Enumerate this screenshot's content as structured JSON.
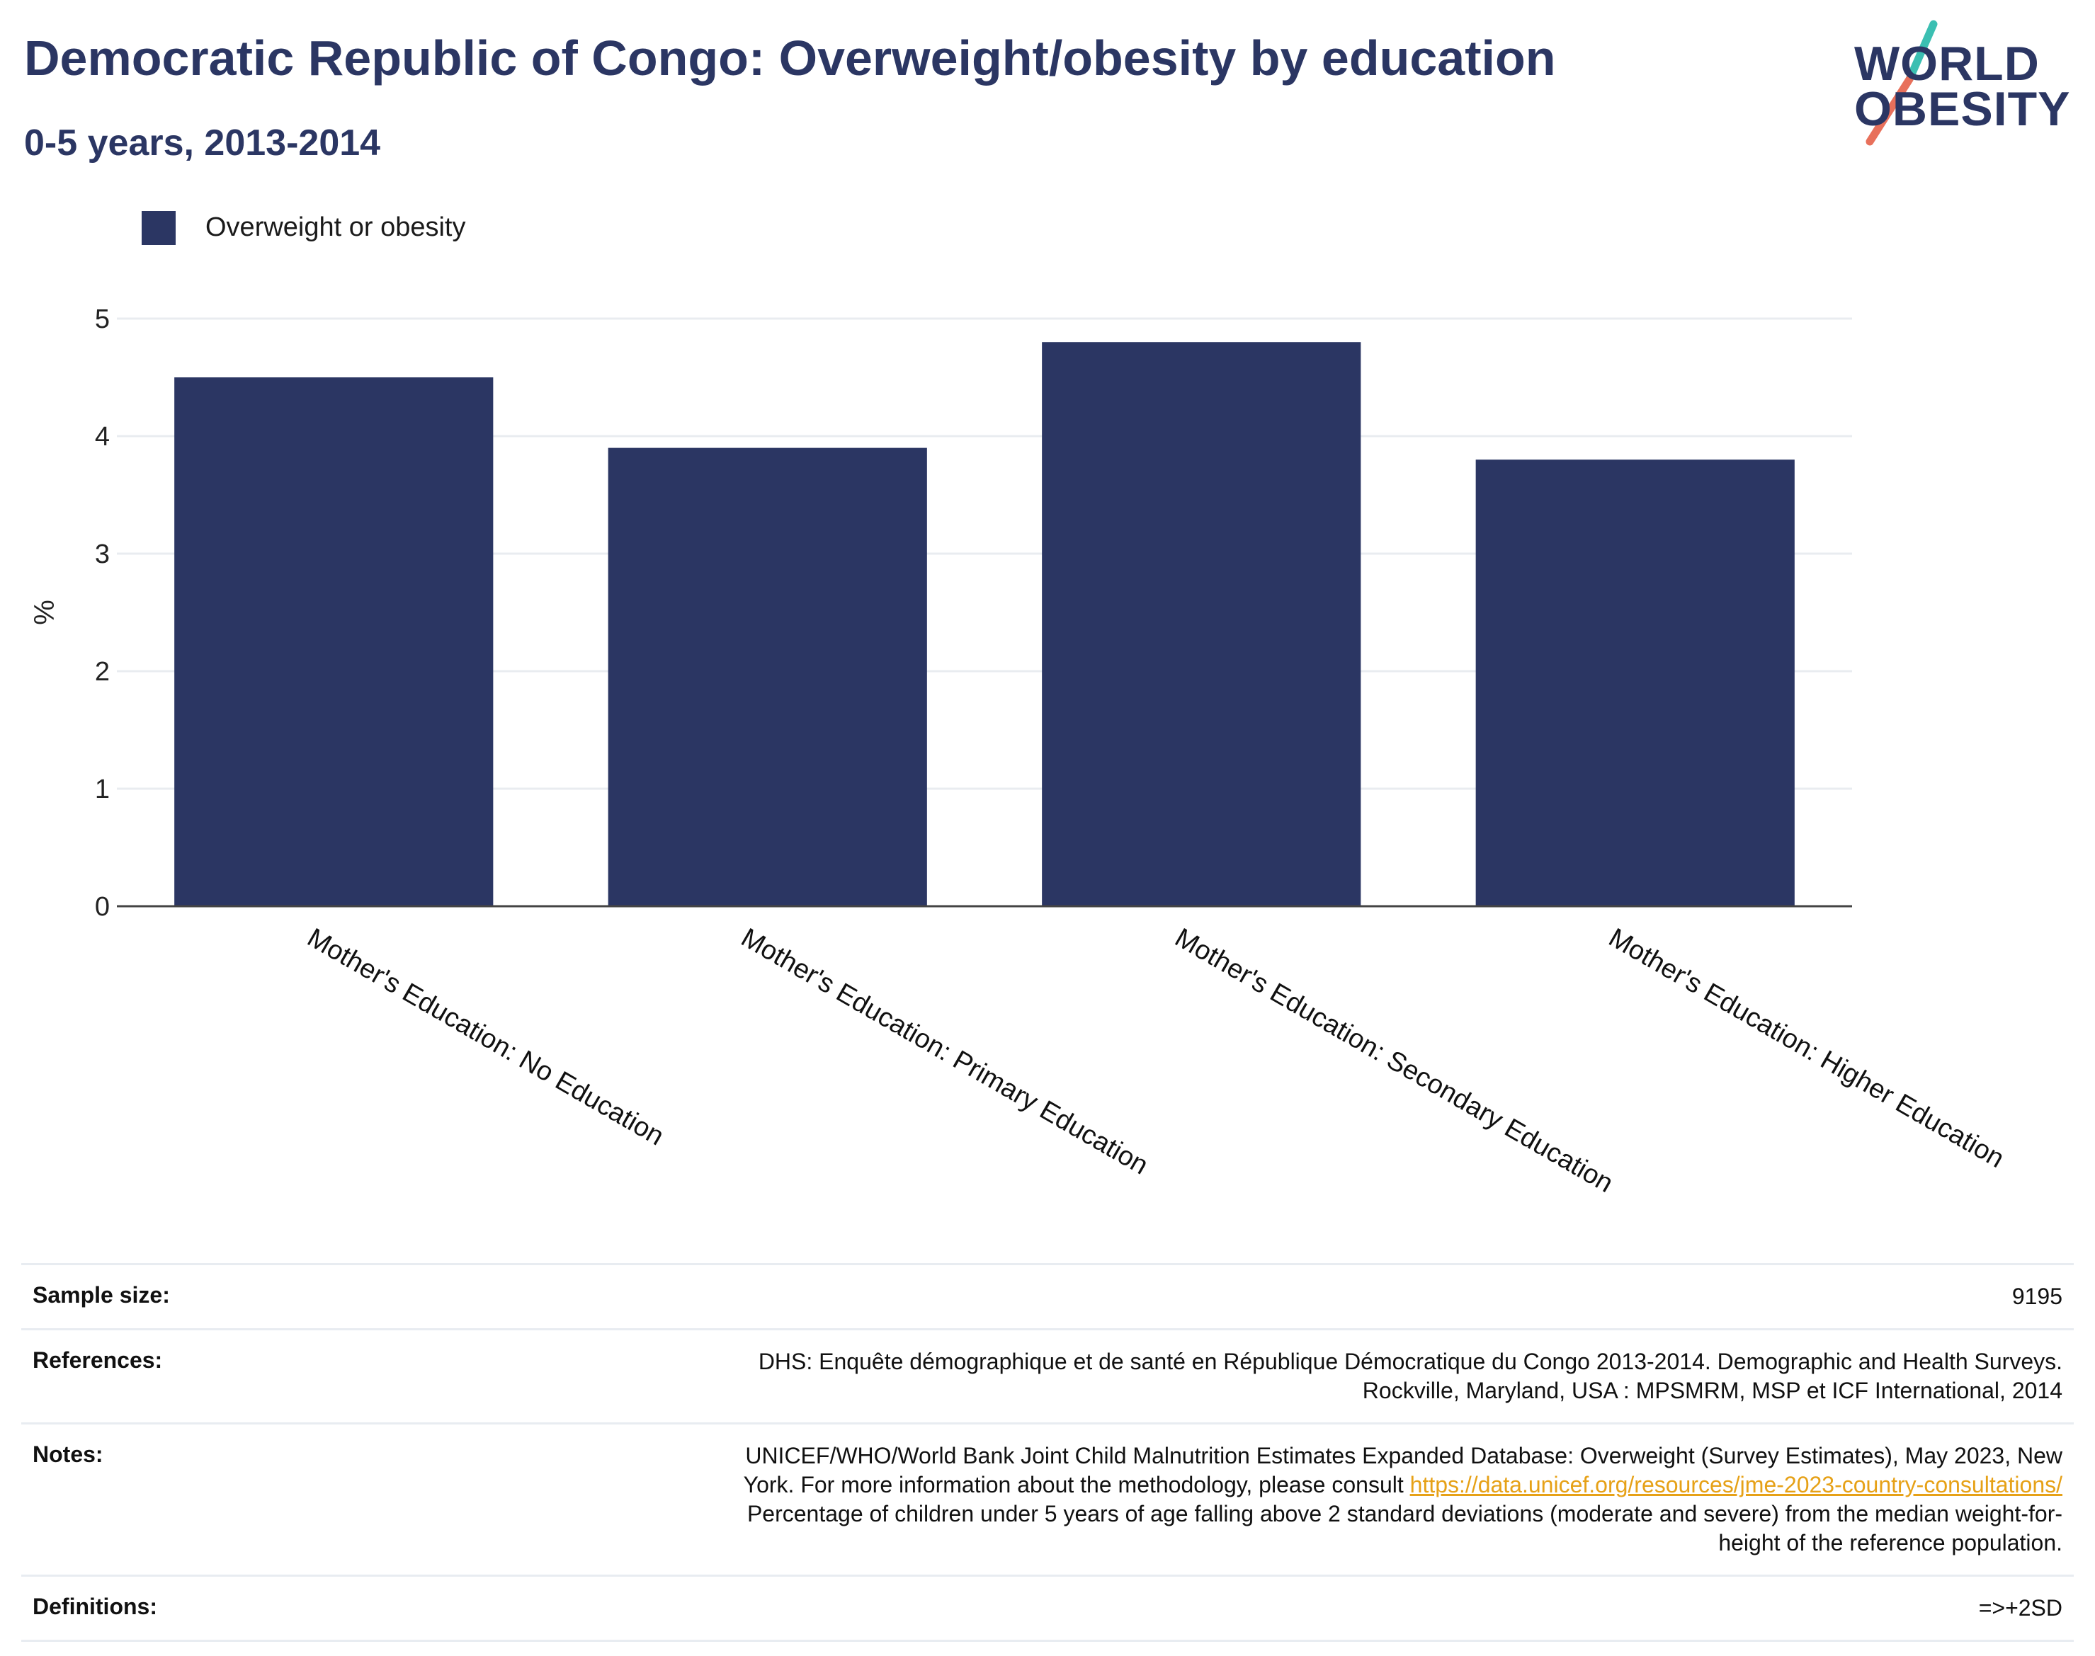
{
  "header": {
    "title": "Democratic Republic of Congo: Overweight/obesity by education",
    "subtitle": "0-5 years, 2013-2014"
  },
  "logo": {
    "line1": "WORLD",
    "line2": "OBESITY",
    "colors": {
      "text": "#2b3663",
      "slash_top": "#3bbfb2",
      "slash_bottom": "#e8705b"
    }
  },
  "legend": {
    "label": "Overweight or obesity",
    "color": "#2b3663"
  },
  "chart_data": {
    "type": "bar",
    "categories": [
      "Mother's Education: No Education",
      "Mother's Education: Primary Education",
      "Mother's Education: Secondary Education",
      "Mother's Education: Higher Education"
    ],
    "series": [
      {
        "name": "Overweight or obesity",
        "values": [
          4.5,
          3.9,
          4.8,
          3.8
        ],
        "color": "#2b3663"
      }
    ],
    "ylabel": "%",
    "ylim": [
      0,
      5
    ],
    "yticks": [
      0,
      1,
      2,
      3,
      4,
      5
    ],
    "grid": true,
    "legend_position": "top-left"
  },
  "info": {
    "sample_size_label": "Sample size:",
    "sample_size_value": "9195",
    "references_label": "References:",
    "references_line1": "DHS: Enquête démographique et de santé en République Démocratique du Congo 2013-2014. Demographic and Health Surveys.",
    "references_line2": "Rockville, Maryland, USA : MPSMRM, MSP et ICF International, 2014",
    "notes_label": "Notes:",
    "notes_line1": "UNICEF/WHO/World Bank Joint Child Malnutrition Estimates Expanded Database: Overweight (Survey Estimates), May 2023, New",
    "notes_line2_prefix": "York. For more information about the methodology, please consult",
    "notes_link": "https://data.unicef.org/resources/jme-2023-country-consultations/",
    "notes_line3": "Percentage of children under 5 years of age falling above 2 standard deviations (moderate and severe) from the median weight-for-",
    "notes_line4": "height of the reference population.",
    "definitions_label": "Definitions:",
    "definitions_value": "=>+2SD"
  }
}
